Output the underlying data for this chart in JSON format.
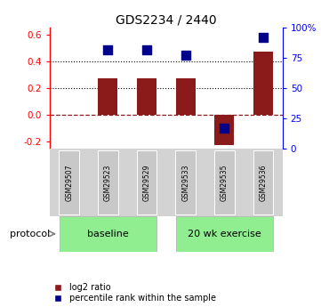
{
  "title": "GDS2234 / 2440",
  "samples": [
    "GSM29507",
    "GSM29523",
    "GSM29529",
    "GSM29533",
    "GSM29535",
    "GSM29536"
  ],
  "log2_ratio": [
    0.0,
    0.27,
    0.27,
    0.27,
    -0.22,
    0.47
  ],
  "percentile_rank": [
    null,
    82.0,
    82.0,
    77.0,
    17.0,
    92.0
  ],
  "bar_color": "#8B1A1A",
  "dot_color": "#00008B",
  "ylim_left": [
    -0.25,
    0.65
  ],
  "ylim_right": [
    0,
    100
  ],
  "yticks_left": [
    -0.2,
    0.0,
    0.2,
    0.4,
    0.6
  ],
  "yticks_right": [
    0,
    25,
    50,
    75,
    100
  ],
  "ytick_labels_right": [
    "0",
    "25",
    "50",
    "75",
    "100%"
  ],
  "hlines_dotted": [
    0.2,
    0.4
  ],
  "hline_dashed": 0.0,
  "protocol_groups": [
    {
      "label": "baseline",
      "start": 0,
      "end": 2,
      "color": "#90EE90"
    },
    {
      "label": "20 wk exercise",
      "start": 3,
      "end": 5,
      "color": "#90EE90"
    }
  ],
  "protocol_label": "protocol",
  "legend_items": [
    {
      "label": "log2 ratio",
      "color": "#8B1A1A"
    },
    {
      "label": "percentile rank within the sample",
      "color": "#00008B"
    }
  ],
  "bar_width": 0.5,
  "dot_size": 45,
  "background_color": "#ffffff",
  "title_fontsize": 10
}
